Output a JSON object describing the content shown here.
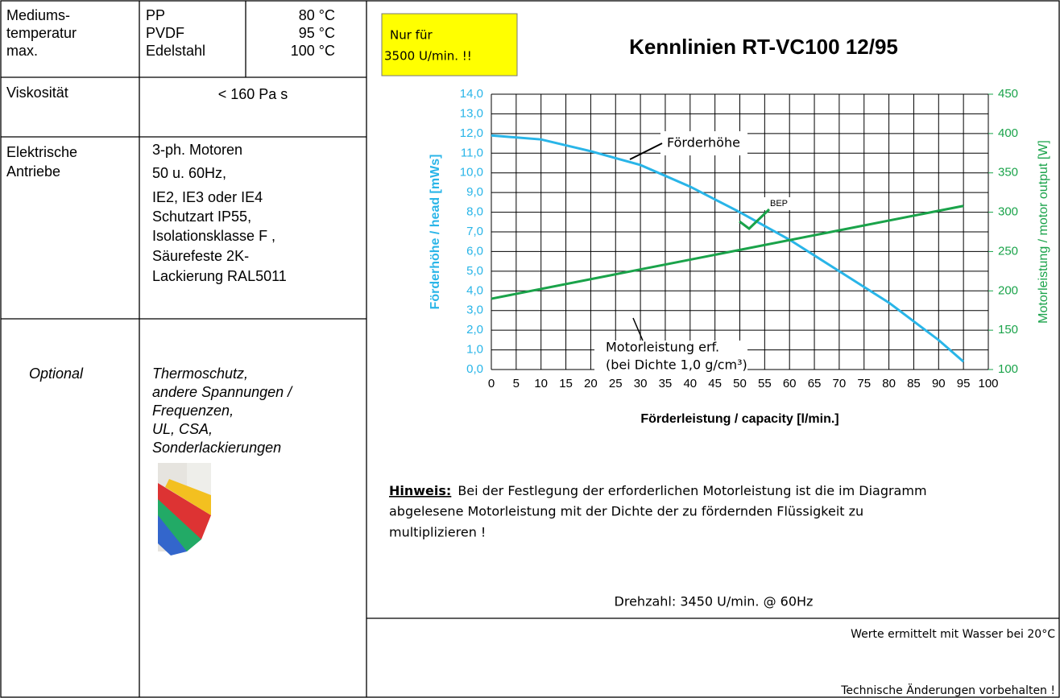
{
  "table": {
    "rows": [
      {
        "label": [
          "Mediums-",
          "temperatur",
          "max."
        ],
        "materials": [
          [
            "PP",
            "80 °C"
          ],
          [
            "PVDF",
            "95 °C"
          ],
          [
            "Edelstahl",
            "100 °C"
          ]
        ]
      },
      {
        "label": [
          "Viskosität"
        ],
        "value": [
          "< 160 Pa s"
        ]
      },
      {
        "label": [
          "Elektrische",
          "Antriebe"
        ],
        "value": [
          "3-ph. Motoren",
          "50 u. 60Hz,",
          "IE2, IE3 oder IE4",
          "Schutzart IP55,",
          "Isolationsklasse F ,",
          "Säurefeste 2K-",
          "Lackierung RAL5011"
        ]
      },
      {
        "label": [
          "Optional"
        ],
        "value": [
          "Thermoschutz,",
          "andere Spannungen /",
          "Frequenzen,",
          "UL, CSA,",
          "Sonderlackierungen"
        ]
      }
    ]
  },
  "note": [
    "Nur für",
    "3500 U/min.  !!"
  ],
  "chart_data": {
    "type": "line",
    "title": "Kennlinien  RT-VC100  12/95",
    "x_label": "Förderleistung / capacity  [l/min.]",
    "y_label": "Förderhöhe / head  [mWs]",
    "y2_label": "Motorleistung / motor output [W]",
    "xlim": [
      0,
      100
    ],
    "xticks": [
      0,
      5,
      10,
      15,
      20,
      25,
      30,
      35,
      40,
      45,
      50,
      55,
      60,
      65,
      70,
      75,
      80,
      85,
      90,
      95,
      100
    ],
    "ylim": [
      0,
      14
    ],
    "yticks": [
      {
        "value": 0,
        "label": "0,0"
      },
      {
        "value": 1,
        "label": "1,0"
      },
      {
        "value": 2,
        "label": "2,0"
      },
      {
        "value": 3,
        "label": "3,0"
      },
      {
        "value": 4,
        "label": "4,0"
      },
      {
        "value": 5,
        "label": "5,0"
      },
      {
        "value": 6,
        "label": "6,0"
      },
      {
        "value": 7,
        "label": "7,0"
      },
      {
        "value": 8,
        "label": "8,0"
      },
      {
        "value": 9,
        "label": "9,0"
      },
      {
        "value": 10,
        "label": "10,0"
      },
      {
        "value": 11,
        "label": "11,0"
      },
      {
        "value": 12,
        "label": "12,0"
      },
      {
        "value": 13,
        "label": "13,0"
      },
      {
        "value": 14,
        "label": "14,0"
      }
    ],
    "y2lim": [
      100,
      450
    ],
    "y2ticks": [
      100,
      150,
      200,
      250,
      300,
      350,
      400,
      450
    ],
    "grid": true,
    "series": [
      {
        "color": "#29b5e8",
        "x": [
          0,
          10,
          20,
          30,
          40,
          50,
          60,
          70,
          80,
          90,
          95
        ],
        "values": [
          11.9,
          11.7,
          11.1,
          10.4,
          9.3,
          8.0,
          6.6,
          5.0,
          3.4,
          1.5,
          0.4
        ]
      },
      {
        "color": "#1aa34a",
        "axis": "y2",
        "x": [
          0,
          95
        ],
        "values": [
          190,
          308
        ]
      }
    ],
    "annotations": [
      "Förderhöhe",
      "BEP",
      "Motorleistung erf.",
      "(bei Dichte 1,0 g/cm³)"
    ]
  },
  "hinweis": {
    "label": "Hinweis:",
    "lines": [
      "Bei der Festlegung der erforderlichen Motorleistung ist die im Diagramm",
      "abgelesene Motorleistung mit der Dichte der zu fördernden Flüssigkeit zu",
      "multiplizieren !"
    ]
  },
  "speed": "Drehzahl:  3450 U/min. @ 60Hz",
  "footer": [
    "Werte ermittelt mit Wasser bei 20°C",
    "Technische Änderungen vorbehalten !"
  ]
}
